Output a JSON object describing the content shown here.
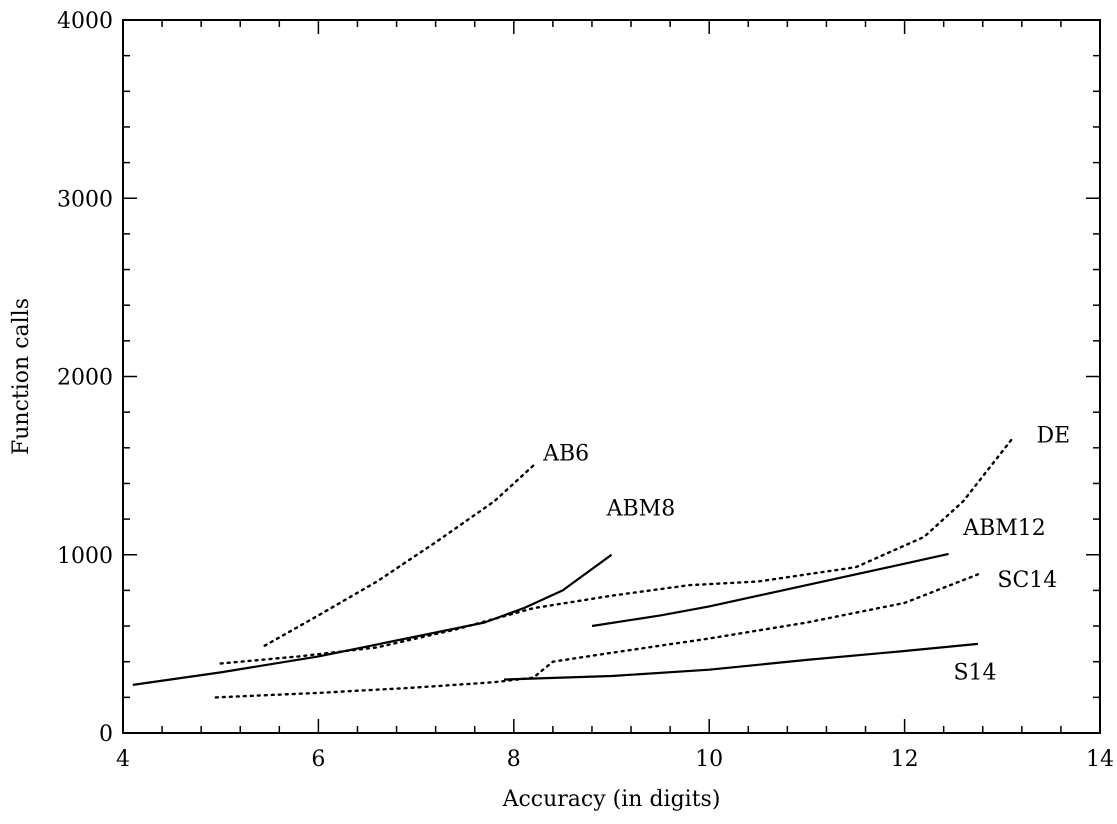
{
  "chart_data": {
    "type": "line",
    "title": "",
    "xlabel": "Accuracy (in digits)",
    "ylabel": "Function calls",
    "xlim": [
      4,
      14
    ],
    "ylim": [
      0,
      4000
    ],
    "x_ticks": [
      4,
      6,
      8,
      10,
      12,
      14
    ],
    "y_ticks": [
      0,
      1000,
      2000,
      3000,
      4000
    ],
    "x_tick_labels": [
      "4",
      "6",
      "8",
      "10",
      "12",
      "14"
    ],
    "y_tick_labels": [
      "0",
      "1000",
      "2000",
      "3000",
      "4000"
    ],
    "grid": false,
    "legend": "none",
    "series": [
      {
        "name": "AB6",
        "style": "dotted",
        "points": [
          [
            5.45,
            490
          ],
          [
            6.0,
            660
          ],
          [
            6.6,
            850
          ],
          [
            7.2,
            1070
          ],
          [
            7.8,
            1300
          ],
          [
            8.2,
            1500
          ]
        ]
      },
      {
        "name": "ABM8",
        "style": "solid",
        "points": [
          [
            4.1,
            270
          ],
          [
            5.0,
            340
          ],
          [
            6.0,
            430
          ],
          [
            6.9,
            530
          ],
          [
            7.7,
            620
          ],
          [
            8.1,
            700
          ],
          [
            8.5,
            800
          ],
          [
            8.8,
            920
          ],
          [
            9.0,
            1000
          ]
        ]
      },
      {
        "name": "ABM12",
        "style": "solid",
        "points": [
          [
            8.8,
            600
          ],
          [
            9.5,
            660
          ],
          [
            10.0,
            710
          ],
          [
            11.0,
            830
          ],
          [
            12.0,
            950
          ],
          [
            12.45,
            1005
          ]
        ]
      },
      {
        "name": "DE",
        "style": "dotted",
        "points": [
          [
            5.0,
            390
          ],
          [
            5.8,
            430
          ],
          [
            6.6,
            480
          ],
          [
            7.4,
            580
          ],
          [
            8.2,
            700
          ],
          [
            9.0,
            770
          ],
          [
            9.8,
            830
          ],
          [
            10.5,
            850
          ],
          [
            11.5,
            930
          ],
          [
            12.2,
            1100
          ],
          [
            12.6,
            1300
          ],
          [
            13.1,
            1650
          ]
        ]
      },
      {
        "name": "SC14",
        "style": "dotted",
        "points": [
          [
            4.95,
            200
          ],
          [
            6.0,
            225
          ],
          [
            7.0,
            255
          ],
          [
            7.8,
            285
          ],
          [
            8.2,
            310
          ],
          [
            8.4,
            400
          ],
          [
            9.0,
            450
          ],
          [
            10.0,
            530
          ],
          [
            11.0,
            620
          ],
          [
            12.0,
            730
          ],
          [
            12.75,
            890
          ]
        ]
      },
      {
        "name": "S14",
        "style": "solid",
        "points": [
          [
            7.9,
            300
          ],
          [
            9.0,
            320
          ],
          [
            10.0,
            355
          ],
          [
            11.0,
            410
          ],
          [
            12.0,
            460
          ],
          [
            12.75,
            500
          ]
        ]
      }
    ],
    "annotations": [
      {
        "text": "AB6",
        "x": 8.3,
        "y": 1530
      },
      {
        "text": "ABM8",
        "x": 8.95,
        "y": 1220
      },
      {
        "text": "DE",
        "x": 13.35,
        "y": 1630
      },
      {
        "text": "ABM12",
        "x": 12.6,
        "y": 1110
      },
      {
        "text": "SC14",
        "x": 12.95,
        "y": 820
      },
      {
        "text": "S14",
        "x": 12.5,
        "y": 300
      }
    ]
  }
}
